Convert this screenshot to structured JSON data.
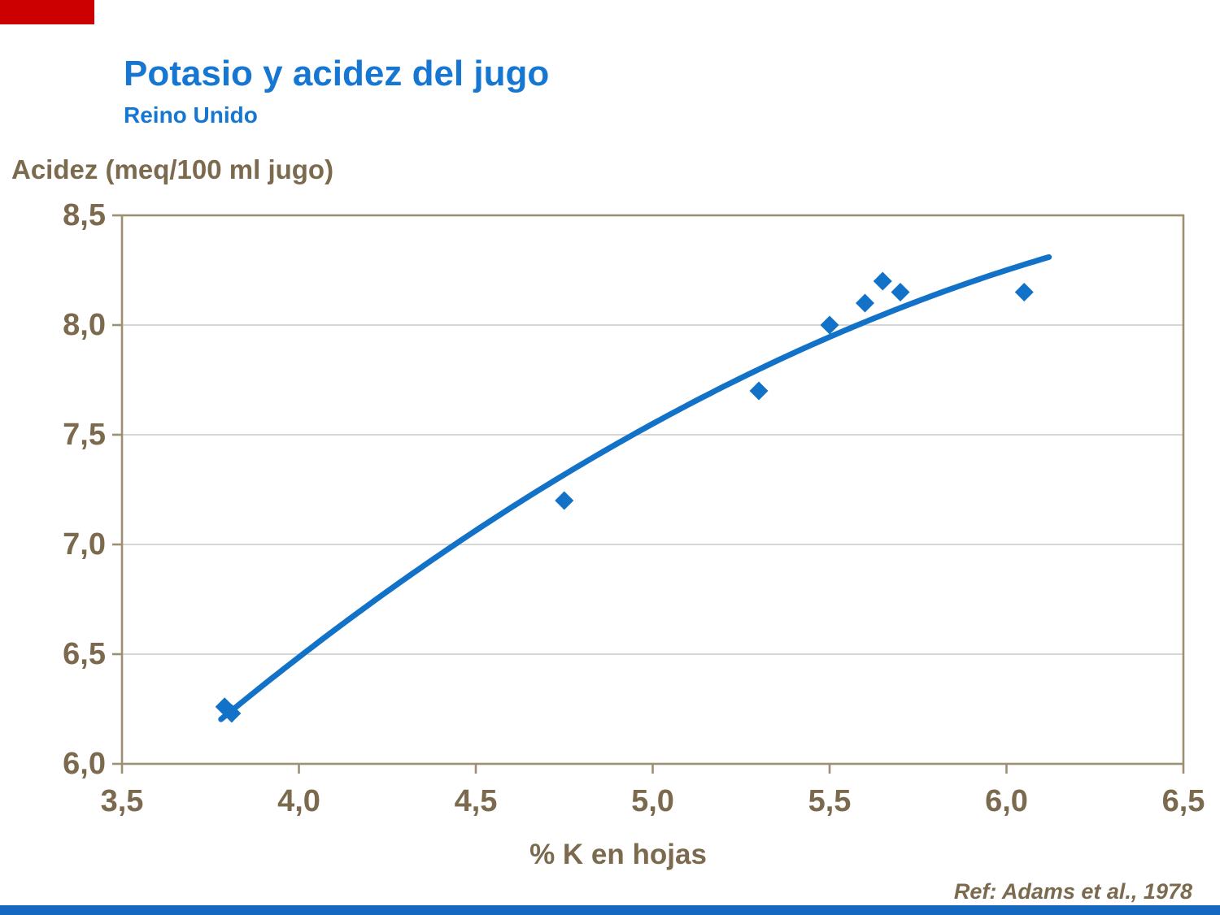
{
  "header": {
    "title": "Potasio y acidez del jugo",
    "subtitle": "Reino Unido"
  },
  "footer": {
    "ref": "Ref: Adams et al., 1978"
  },
  "chart_data": {
    "type": "scatter",
    "title": "Potasio y acidez del jugo",
    "subtitle": "Reino Unido",
    "xlabel": "% K en hojas",
    "ylabel": "Acidez (meq/100 ml jugo)",
    "xlim": [
      3.5,
      6.5
    ],
    "ylim": [
      6.0,
      8.5
    ],
    "x_ticks": [
      3.5,
      4.0,
      4.5,
      5.0,
      5.5,
      6.0,
      6.5
    ],
    "y_ticks": [
      6.0,
      6.5,
      7.0,
      7.5,
      8.0,
      8.5
    ],
    "tick_label_format": "comma-decimal",
    "grid": "horizontal",
    "legend": "none",
    "points": [
      [
        3.79,
        6.26
      ],
      [
        3.81,
        6.23
      ],
      [
        4.75,
        7.2
      ],
      [
        5.3,
        7.7
      ],
      [
        5.5,
        8.0
      ],
      [
        5.6,
        8.1
      ],
      [
        5.65,
        8.2
      ],
      [
        5.7,
        8.15
      ],
      [
        6.05,
        8.15
      ]
    ],
    "trend": {
      "type": "quadratic",
      "coeffs": [
        -1.405,
        2.7,
        -0.1818
      ],
      "x_range": [
        3.78,
        6.12
      ]
    },
    "colors": {
      "series": "#1272c8",
      "title_blue": "#1677d2",
      "axis_text": "#7b6a4e",
      "frame": "#9c8f72",
      "grid": "#c9c9c9",
      "red_block": "#cc0000",
      "bottom_bar": "#1568c0"
    }
  }
}
